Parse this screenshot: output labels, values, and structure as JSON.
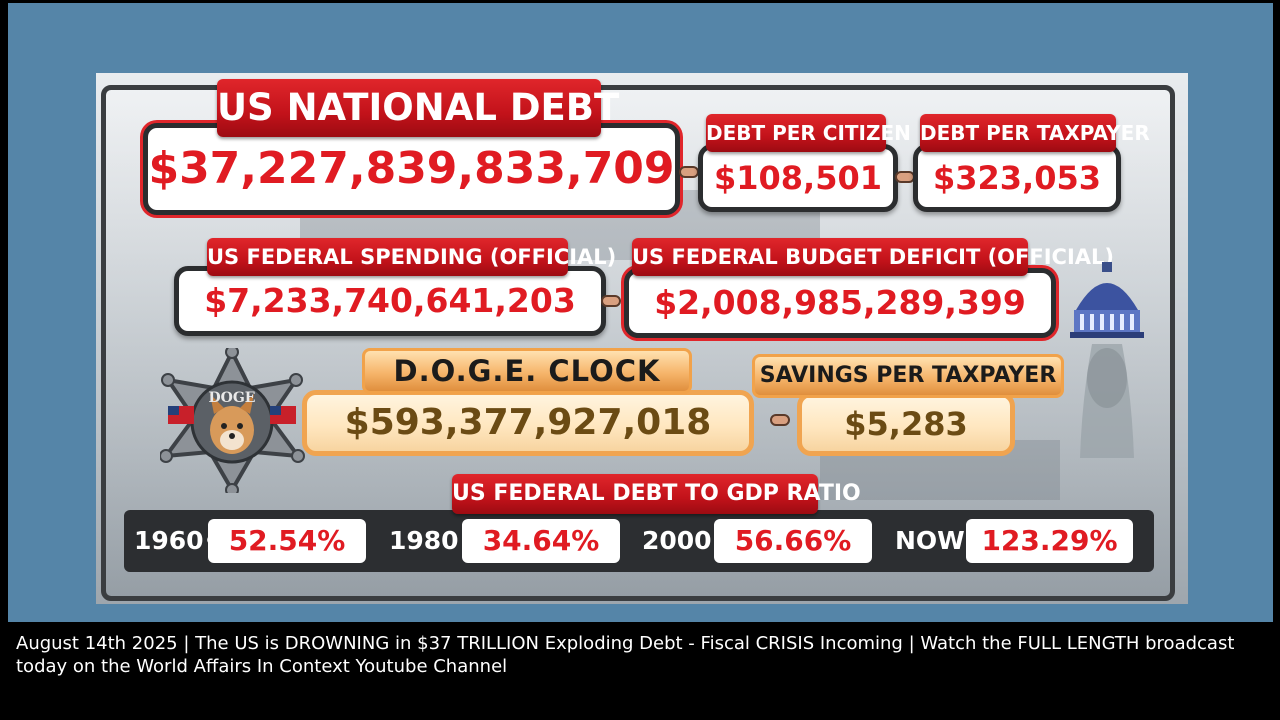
{
  "debt_board": {
    "national_debt": {
      "label": "US NATIONAL DEBT",
      "value": "$37,227,839,833,709"
    },
    "debt_per_citizen": {
      "label": "DEBT PER CITIZEN",
      "value": "$108,501"
    },
    "debt_per_taxpayer": {
      "label": "DEBT PER TAXPAYER",
      "value": "$323,053"
    },
    "federal_spending": {
      "label": "US FEDERAL SPENDING (OFFICIAL)",
      "value": "$7,233,740,641,203"
    },
    "budget_deficit": {
      "label": "US FEDERAL BUDGET DEFICIT (OFFICIAL)",
      "value": "$2,008,985,289,399"
    },
    "doge_clock": {
      "label": "D.O.G.E. CLOCK",
      "value": "$593,377,927,018"
    },
    "savings_per_taxpayer": {
      "label": "SAVINGS PER TAXPAYER",
      "value": "$5,283"
    },
    "badge_text": "DOGE",
    "gdp_ratio": {
      "label": "US FEDERAL DEBT TO GDP RATIO",
      "entries": [
        {
          "year": "1960",
          "value": "52.54%"
        },
        {
          "year": "1980",
          "value": "34.64%"
        },
        {
          "year": "2000",
          "value": "56.66%"
        },
        {
          "year": "NOW",
          "value": "123.29%"
        }
      ]
    }
  },
  "caption": "August 14th 2025 | The US is DROWNING in $37 TRILLION Exploding Debt - Fiscal CRISIS Incoming | Watch the FULL LENGTH broadcast today on the World Affairs In Context Youtube Channel",
  "colors": {
    "frame_blue": "#5585a8",
    "alert_red": "#e01b22",
    "doge_gold": "#f0a450"
  }
}
